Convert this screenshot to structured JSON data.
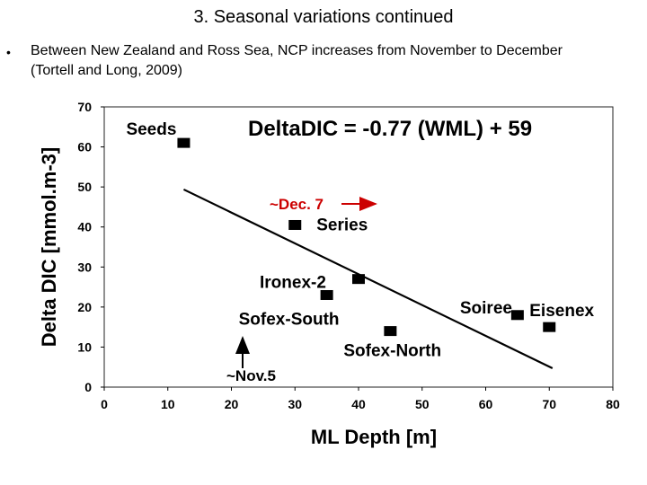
{
  "slide": {
    "title": "3. Seasonal variations continued",
    "bullet": "•",
    "text": "Between New Zealand and Ross Sea, NCP increases from November to December (Tortell and Long, 2009)"
  },
  "chart_data": {
    "type": "scatter",
    "equation": "DeltaDIC = -0.77 (WML) + 59",
    "xlabel": "ML Depth [m]",
    "ylabel": "Delta DIC [mmol.m-3]",
    "xlim": [
      0,
      80
    ],
    "ylim": [
      0,
      70
    ],
    "xticks": [
      "0",
      "10",
      "20",
      "30",
      "40",
      "50",
      "60",
      "70",
      "80"
    ],
    "yticks": [
      "0",
      "10",
      "20",
      "30",
      "40",
      "50",
      "60",
      "70"
    ],
    "points": [
      {
        "name": "Seeds",
        "x": 12.5,
        "y": 61
      },
      {
        "name": "Series",
        "x": 30,
        "y": 40.5
      },
      {
        "name": "Ironex-2",
        "x": 40,
        "y": 27
      },
      {
        "name": "Sofex-South",
        "x": 35,
        "y": 23
      },
      {
        "name": "Sofex-North",
        "x": 45,
        "y": 14
      },
      {
        "name": "Soiree",
        "x": 65,
        "y": 18
      },
      {
        "name": "Eisenex",
        "x": 70,
        "y": 15
      }
    ],
    "fit_line": {
      "slope": -0.77,
      "intercept": 59,
      "x_range": [
        12.5,
        70.5
      ]
    },
    "annotations": [
      {
        "text": "~Dec. 7",
        "color": "#cc0000"
      },
      {
        "text": "~Nov.5",
        "color": "#000000"
      }
    ],
    "grid": false,
    "legend": "none"
  }
}
